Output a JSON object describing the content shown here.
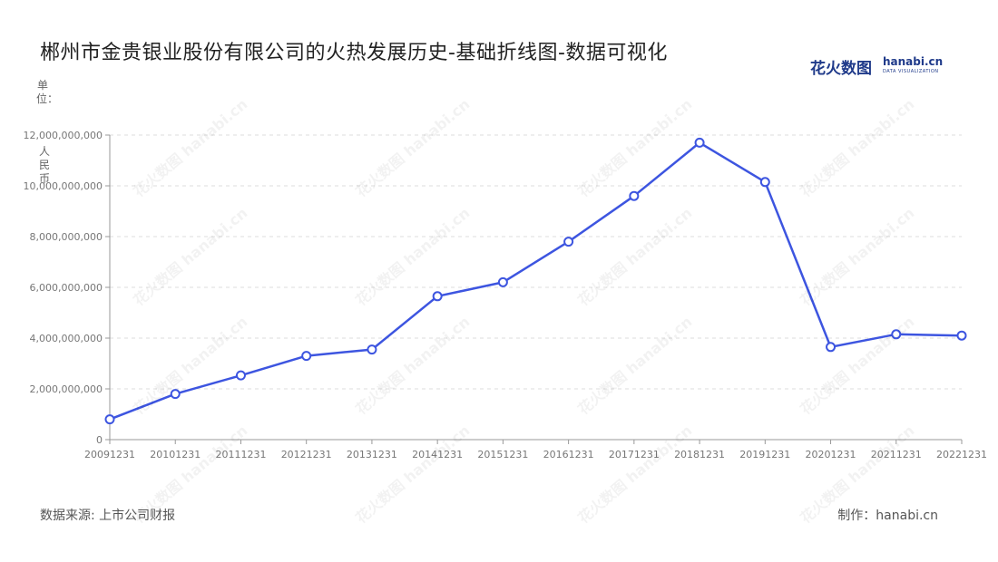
{
  "header": {
    "title": "郴州市金贵银业股份有限公司的火热发展历史-基础折线图-数据可视化"
  },
  "logo": {
    "cn_text": "花火数图",
    "en_text": "hanabi.cn",
    "sub_text": "DATA VISUALIZATION"
  },
  "footer": {
    "source": "数据来源: 上市公司财报",
    "credit": "制作：hanabi.cn"
  },
  "watermark_text": "花火数图 hanabi.cn",
  "colors": {
    "line": "#3d55e0",
    "grid": "#dddddd",
    "axis": "#999999"
  },
  "chart_data": {
    "type": "line",
    "ylabel": "单位：人民币",
    "categories": [
      "20091231",
      "20101231",
      "20111231",
      "20121231",
      "20131231",
      "20141231",
      "20151231",
      "20161231",
      "20171231",
      "20181231",
      "20191231",
      "20201231",
      "20211231",
      "20221231"
    ],
    "series": [
      {
        "values": [
          800000000,
          1800000000,
          2530000000,
          3300000000,
          3550000000,
          5650000000,
          6200000000,
          7800000000,
          9600000000,
          11700000000,
          10150000000,
          3650000000,
          4150000000,
          4100000000
        ]
      }
    ],
    "yticks": [
      "0",
      "2,000,000,000",
      "4,000,000,000",
      "6,000,000,000",
      "8,000,000,000",
      "10,000,000,000",
      "12,000,000,000"
    ],
    "ylim": [
      0,
      12000000000
    ],
    "grid": true,
    "grid_style": "dashed"
  }
}
